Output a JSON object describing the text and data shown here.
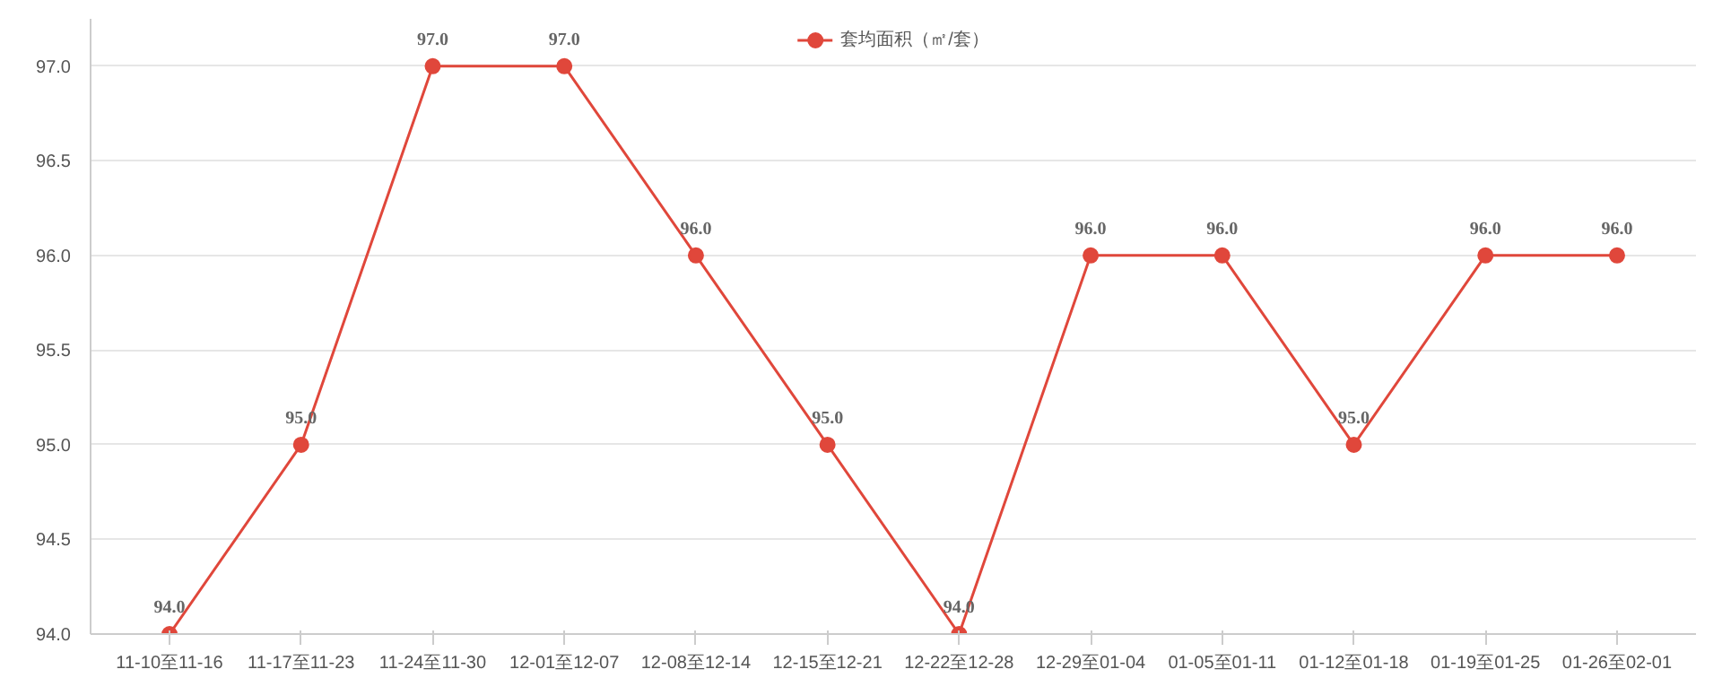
{
  "chart_data": {
    "type": "line",
    "categories": [
      "11-10至11-16",
      "11-17至11-23",
      "11-24至11-30",
      "12-01至12-07",
      "12-08至12-14",
      "12-15至12-21",
      "12-22至12-28",
      "12-29至01-04",
      "01-05至01-11",
      "01-12至01-18",
      "01-19至01-25",
      "01-26至02-01"
    ],
    "series": [
      {
        "name": "套均面积（㎡/套）",
        "color": "#e0473b",
        "values": [
          94,
          95,
          97,
          97,
          96,
          95,
          94,
          96,
          96,
          95,
          96,
          96
        ],
        "value_labels": [
          "94.0",
          "95.0",
          "97.0",
          "97.0",
          "96.0",
          "95.0",
          "94.0",
          "96.0",
          "96.0",
          "95.0",
          "96.0",
          "96.0"
        ]
      }
    ],
    "ylim": [
      94,
      97.25
    ],
    "yticks": [
      {
        "value": 94,
        "label": "94.0"
      },
      {
        "value": 94.5,
        "label": "94.5"
      },
      {
        "value": 95,
        "label": "95.0"
      },
      {
        "value": 95.5,
        "label": "95.5"
      },
      {
        "value": 96,
        "label": "96.0"
      },
      {
        "value": 96.5,
        "label": "96.5"
      },
      {
        "value": 97,
        "label": "97.0"
      }
    ],
    "grid": "y",
    "legend": "top",
    "marker": "circle",
    "line_style": "solid"
  }
}
